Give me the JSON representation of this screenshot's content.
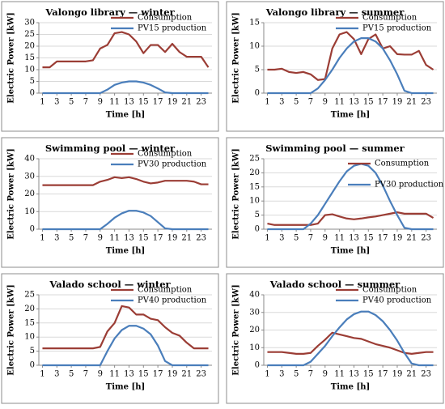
{
  "chart_data": [
    {
      "type": "line",
      "title": "Valongo library — winter",
      "xlabel": "Time [h]",
      "ylabel": "Electric Power [kW]",
      "x": [
        1,
        2,
        3,
        4,
        5,
        6,
        7,
        8,
        9,
        10,
        11,
        12,
        13,
        14,
        15,
        16,
        17,
        18,
        19,
        20,
        21,
        22,
        23,
        24
      ],
      "xlim": [
        0.5,
        24.5
      ],
      "xticks": [
        1,
        3,
        5,
        7,
        9,
        11,
        13,
        15,
        17,
        19,
        21,
        23
      ],
      "ylim": [
        0,
        30
      ],
      "yticks": [
        0,
        5,
        10,
        15,
        20,
        25,
        30
      ],
      "grid": true,
      "legend": "upper right",
      "series": [
        {
          "name": "Consumption",
          "color": "#9b3d35",
          "values": [
            11,
            11,
            13.5,
            13.5,
            13.5,
            13.5,
            13.5,
            14,
            19,
            20.5,
            25.5,
            26,
            25,
            22,
            17,
            20.5,
            20.5,
            17.5,
            21,
            17.5,
            15.5,
            15.5,
            15.5,
            11
          ]
        },
        {
          "name": "PV15 production",
          "color": "#4a7ebb",
          "values": [
            0,
            0,
            0,
            0,
            0,
            0,
            0,
            0,
            0,
            1.5,
            3.5,
            4.5,
            5,
            5,
            4.5,
            3.5,
            2,
            0.3,
            0,
            0,
            0,
            0,
            0,
            0
          ]
        }
      ]
    },
    {
      "type": "line",
      "title": "Valongo library — summer",
      "xlabel": "Time [h]",
      "ylabel": "Electric Power [kW]",
      "x": [
        1,
        2,
        3,
        4,
        5,
        6,
        7,
        8,
        9,
        10,
        11,
        12,
        13,
        14,
        15,
        16,
        17,
        18,
        19,
        20,
        21,
        22,
        23,
        24
      ],
      "xlim": [
        0.5,
        24.5
      ],
      "xticks": [
        1,
        3,
        5,
        7,
        9,
        11,
        13,
        15,
        17,
        19,
        21,
        23
      ],
      "ylim": [
        0,
        15
      ],
      "yticks": [
        0,
        5,
        10,
        15
      ],
      "grid": true,
      "legend": "upper right",
      "series": [
        {
          "name": "Consumption",
          "color": "#9b3d35",
          "values": [
            5,
            5,
            5.2,
            4.5,
            4.3,
            4.5,
            4,
            2.8,
            3,
            9.5,
            12.5,
            13,
            11.5,
            8.3,
            11.5,
            12.5,
            9.5,
            10,
            8.3,
            8.2,
            8.2,
            9,
            6,
            5
          ]
        },
        {
          "name": "PV15 production",
          "color": "#4a7ebb",
          "values": [
            0,
            0,
            0,
            0,
            0,
            0,
            0,
            1,
            2.8,
            5,
            7.5,
            9.5,
            11,
            11.7,
            11.7,
            11,
            9.5,
            7,
            4,
            0.5,
            0,
            0,
            0,
            0
          ]
        }
      ]
    },
    {
      "type": "line",
      "title": "Swimming pool — winter",
      "xlabel": "Time [h]",
      "ylabel": "Electric Power [kW]",
      "x": [
        1,
        2,
        3,
        4,
        5,
        6,
        7,
        8,
        9,
        10,
        11,
        12,
        13,
        14,
        15,
        16,
        17,
        18,
        19,
        20,
        21,
        22,
        23,
        24
      ],
      "xlim": [
        0.5,
        24.5
      ],
      "xticks": [
        1,
        3,
        5,
        7,
        9,
        11,
        13,
        15,
        17,
        19,
        21,
        23
      ],
      "ylim": [
        0,
        40
      ],
      "yticks": [
        0,
        10,
        20,
        30,
        40
      ],
      "grid": true,
      "legend": "upper right",
      "series": [
        {
          "name": "Consumption",
          "color": "#9b3d35",
          "values": [
            25,
            25,
            25,
            25,
            25,
            25,
            25,
            25,
            27,
            28,
            29.5,
            29,
            29.5,
            28.5,
            27,
            26,
            26.5,
            27.5,
            27.5,
            27.5,
            27.5,
            27,
            25.5,
            25.5
          ]
        },
        {
          "name": "PV30 production",
          "color": "#4a7ebb",
          "values": [
            0,
            0,
            0,
            0,
            0,
            0,
            0,
            0,
            0,
            3,
            6.5,
            9,
            10.5,
            10.5,
            9.5,
            7.5,
            4,
            0.5,
            0,
            0,
            0,
            0,
            0,
            0
          ]
        }
      ]
    },
    {
      "type": "line",
      "title": "Swimming pool — summer",
      "xlabel": "Time [h]",
      "ylabel": "Electric Power [kW]",
      "x": [
        1,
        2,
        3,
        4,
        5,
        6,
        7,
        8,
        9,
        10,
        11,
        12,
        13,
        14,
        15,
        16,
        17,
        18,
        19,
        20,
        21,
        22,
        23,
        24
      ],
      "xlim": [
        0.5,
        24.5
      ],
      "xticks": [
        1,
        3,
        5,
        7,
        9,
        11,
        13,
        15,
        17,
        19,
        21,
        23
      ],
      "ylim": [
        0,
        25
      ],
      "yticks": [
        0,
        5,
        10,
        15,
        20,
        25
      ],
      "grid": true,
      "legend": "right",
      "series": [
        {
          "name": "Consumption",
          "color": "#9b3d35",
          "values": [
            2,
            1.5,
            1.5,
            1.5,
            1.5,
            1.5,
            1.5,
            2,
            5,
            5.3,
            4.5,
            3.8,
            3.5,
            3.8,
            4.2,
            4.5,
            5,
            5.5,
            6,
            5.5,
            5.5,
            5.5,
            5.5,
            4
          ]
        },
        {
          "name": "PV30 production",
          "color": "#4a7ebb",
          "values": [
            0,
            0,
            0,
            0,
            0,
            0,
            2,
            5,
            9,
            13,
            17,
            20.5,
            22.5,
            23.2,
            22.5,
            20,
            15.5,
            10,
            5,
            0.5,
            0,
            0,
            0,
            0
          ]
        }
      ]
    },
    {
      "type": "line",
      "title": "Valado school — winter",
      "xlabel": "Time [h]",
      "ylabel": "Electric Power [kW]",
      "x": [
        1,
        2,
        3,
        4,
        5,
        6,
        7,
        8,
        9,
        10,
        11,
        12,
        13,
        14,
        15,
        16,
        17,
        18,
        19,
        20,
        21,
        22,
        23,
        24
      ],
      "xlim": [
        0.5,
        24.5
      ],
      "xticks": [
        1,
        3,
        5,
        7,
        9,
        11,
        13,
        15,
        17,
        19,
        21,
        23
      ],
      "ylim": [
        0,
        25
      ],
      "yticks": [
        0,
        5,
        10,
        15,
        20,
        25
      ],
      "grid": true,
      "legend": "upper right",
      "series": [
        {
          "name": "Consumption",
          "color": "#9b3d35",
          "values": [
            6,
            6,
            6,
            6,
            6,
            6,
            6,
            6,
            6.5,
            12,
            15,
            21,
            20.5,
            18,
            18,
            16.5,
            16,
            13.5,
            11.5,
            10.5,
            8,
            6,
            6,
            6
          ]
        },
        {
          "name": "PV40 production",
          "color": "#4a7ebb",
          "values": [
            0,
            0,
            0,
            0,
            0,
            0,
            0,
            0,
            0,
            5,
            9.5,
            12.5,
            14,
            14,
            13,
            11,
            7,
            1.5,
            0,
            0,
            0,
            0,
            0,
            0
          ]
        }
      ]
    },
    {
      "type": "line",
      "title": "Valado school — summer",
      "xlabel": "Time [h]",
      "ylabel": "Electric Power [kW]",
      "x": [
        1,
        2,
        3,
        4,
        5,
        6,
        7,
        8,
        9,
        10,
        11,
        12,
        13,
        14,
        15,
        16,
        17,
        18,
        19,
        20,
        21,
        22,
        23,
        24
      ],
      "xlim": [
        0.5,
        24.5
      ],
      "xticks": [
        1,
        3,
        5,
        7,
        9,
        11,
        13,
        15,
        17,
        19,
        21,
        23
      ],
      "ylim": [
        0,
        40
      ],
      "yticks": [
        0,
        10,
        20,
        30,
        40
      ],
      "grid": true,
      "legend": "upper right",
      "series": [
        {
          "name": "Consumption",
          "color": "#9b3d35",
          "values": [
            7.5,
            7.5,
            7.5,
            7,
            6.5,
            6.5,
            7,
            11,
            14.5,
            18.5,
            17.5,
            16.5,
            15.5,
            15,
            13.5,
            12,
            11,
            10,
            8.5,
            7,
            6.5,
            7,
            7.5,
            7.5
          ]
        },
        {
          "name": "PV40 production",
          "color": "#4a7ebb",
          "values": [
            0,
            0,
            0,
            0,
            0,
            0,
            2,
            6.5,
            11,
            16.5,
            21.5,
            26,
            29,
            30.5,
            30.5,
            28.5,
            25,
            20,
            14,
            7,
            1,
            0,
            0,
            0
          ]
        }
      ]
    }
  ]
}
